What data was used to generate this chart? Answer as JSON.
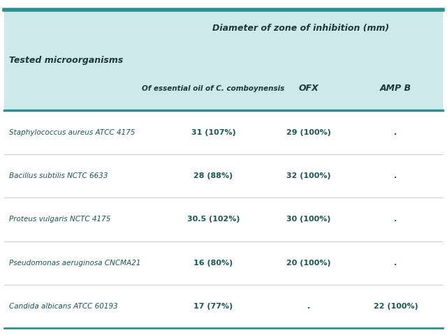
{
  "group_header": "Diameter of zone of inhibition (mm)",
  "col1_header": "Tested microorganisms",
  "col2_header": "Of essential oil of C. comboynensis",
  "col3_header": "OFX",
  "col4_header": "AMP B",
  "rows": [
    {
      "organism": "Staphylococcus aureus ATCC 4175",
      "essential_oil": "31 (107%)",
      "ofx": "29 (100%)",
      "amp_b": "."
    },
    {
      "organism": "Bacillus subtilis NCTC 6633",
      "essential_oil": "28 (88%)",
      "ofx": "32 (100%)",
      "amp_b": "."
    },
    {
      "organism": "Proteus vulgaris NCTC 4175",
      "essential_oil": "30.5 (102%)",
      "ofx": "30 (100%)",
      "amp_b": "."
    },
    {
      "organism": "Pseudomonas aeruginosa CNCMA21",
      "essential_oil": "16 (80%)",
      "ofx": "20 (100%)",
      "amp_b": "."
    },
    {
      "organism": "Candida albicans ATCC 60193",
      "essential_oil": "17 (77%)",
      "ofx": ".",
      "amp_b": "22 (100%)"
    }
  ],
  "header_bg": "#cde9e9",
  "header_border_color": "#2a8f8f",
  "row_text_color": "#1a5555",
  "header_text_color": "#1a3a3a",
  "bg_color": "#ffffff",
  "border_color": "#2a8f8f",
  "sep_color": "#aaaaaa",
  "top_strip_color": "#2a8f8f",
  "bottom_strip_color": "#2a8f8f"
}
